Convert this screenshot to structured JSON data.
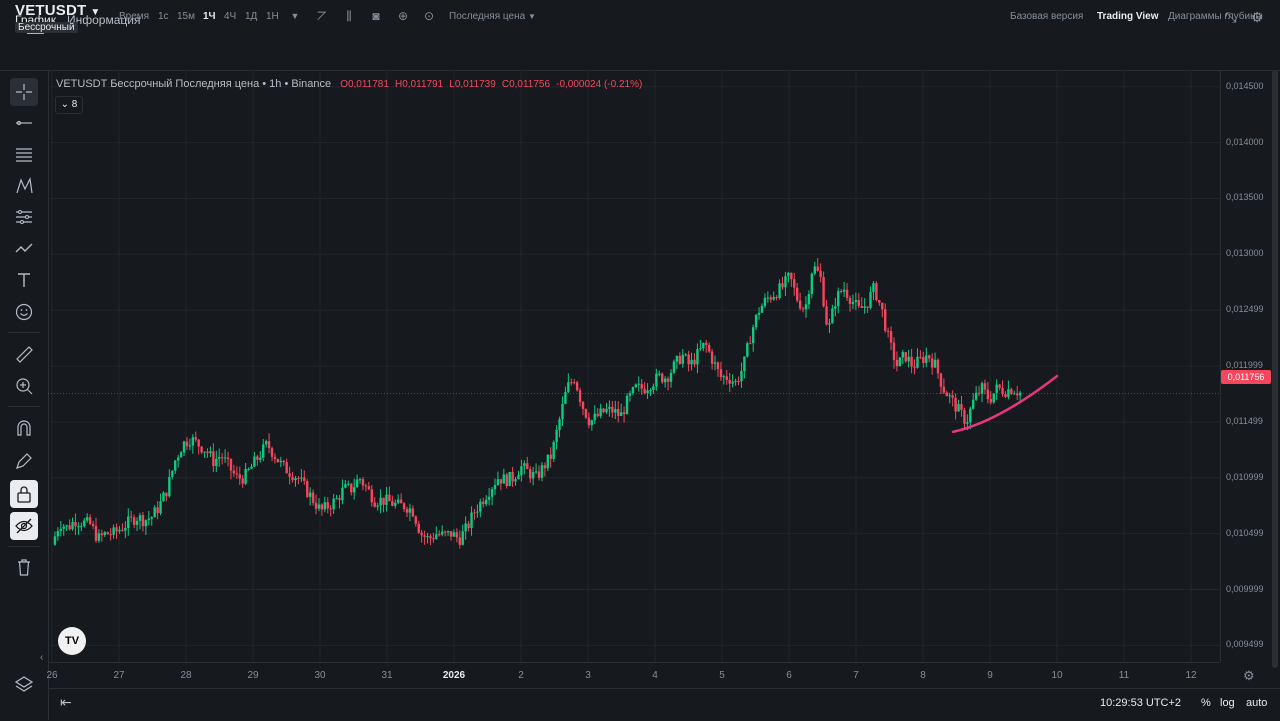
{
  "tabs": [
    {
      "label": "График"
    },
    {
      "label": "Информация"
    }
  ],
  "symbol": {
    "name": "VETUSDT",
    "contract": "Бессрочный"
  },
  "toolbar": {
    "time_label": "Время",
    "timeframes": [
      "1с",
      "15м",
      "1Ч",
      "4Ч",
      "1Д",
      "1Н"
    ],
    "active_timeframe": "1Ч",
    "price_type": "Последняя цена",
    "views": [
      "Базовая версия",
      "Trading View",
      "Диаграммы глубины"
    ],
    "active_view": "Trading View"
  },
  "legend": {
    "title": "VETUSDT Бессрочный Последняя цена • 1h • Binance",
    "o": "O0,011781",
    "h": "H0,011791",
    "l": "L0,011739",
    "c": "C0,011756",
    "change": "-0,000024 (-0.21%)"
  },
  "indicators_count": "8",
  "current_price": "0,011756",
  "clock": "10:29:53 UTC+2",
  "bottom": {
    "percent": "%",
    "log": "log",
    "auto": "auto"
  },
  "colors": {
    "up": "#0ecb81",
    "down": "#f6465d",
    "accent": "#f0b90b",
    "trendline": "#e8357f"
  },
  "chart_data": {
    "type": "candlestick",
    "y_ticks": [
      "0,014500",
      "0,014000",
      "0,013500",
      "0,013000",
      "0,012499",
      "0,011999",
      "0,011499",
      "0,010999",
      "0,010499",
      "0,009999",
      "0,009499"
    ],
    "ylim": [
      0.00935,
      0.01465
    ],
    "x_ticks": [
      "26",
      "27",
      "28",
      "29",
      "30",
      "31",
      "2026",
      "2",
      "3",
      "4",
      "5",
      "6",
      "7",
      "8",
      "9",
      "10",
      "11",
      "12"
    ],
    "close_path": [
      0.0104,
      0.0106,
      0.01055,
      0.01062,
      0.0106,
      0.01058,
      0.01045,
      0.0105,
      0.0105,
      0.01055,
      0.0106,
      0.01065,
      0.01062,
      0.01065,
      0.01075,
      0.0109,
      0.01115,
      0.0113,
      0.01135,
      0.0113,
      0.01125,
      0.01115,
      0.0112,
      0.0111,
      0.011,
      0.011,
      0.0111,
      0.0112,
      0.0113,
      0.0112,
      0.0111,
      0.01105,
      0.011,
      0.0109,
      0.0108,
      0.0107,
      0.01075,
      0.0108,
      0.0109,
      0.0109,
      0.011,
      0.0109,
      0.0108,
      0.0108,
      0.01078,
      0.01075,
      0.01075,
      0.0107,
      0.0105,
      0.01045,
      0.0105,
      0.01048,
      0.0105,
      0.01045,
      0.01055,
      0.0107,
      0.0108,
      0.0109,
      0.011,
      0.01098,
      0.011,
      0.0111,
      0.01105,
      0.011,
      0.0111,
      0.0112,
      0.0115,
      0.0118,
      0.0119,
      0.01165,
      0.0115,
      0.01155,
      0.0116,
      0.0116,
      0.01155,
      0.0117,
      0.0118,
      0.0118,
      0.01185,
      0.0119,
      0.0119,
      0.012,
      0.0121,
      0.012,
      0.0121,
      0.0122,
      0.01205,
      0.0119,
      0.0119,
      0.01185,
      0.012,
      0.0123,
      0.0125,
      0.0126,
      0.01265,
      0.0127,
      0.0128,
      0.0126,
      0.0125,
      0.0129,
      0.0128,
      0.0123,
      0.0126,
      0.0127,
      0.0126,
      0.0125,
      0.01255,
      0.0127,
      0.0125,
      0.0122,
      0.012,
      0.0121,
      0.012,
      0.01205,
      0.0121,
      0.012,
      0.0118,
      0.0117,
      0.0116,
      0.0115,
      0.0117,
      0.0118,
      0.0117,
      0.0118,
      0.01178,
      0.0118,
      0.01176
    ]
  },
  "trendline": {
    "from": [
      "8",
      0.01141
    ],
    "to": [
      "10",
      0.01191
    ]
  }
}
